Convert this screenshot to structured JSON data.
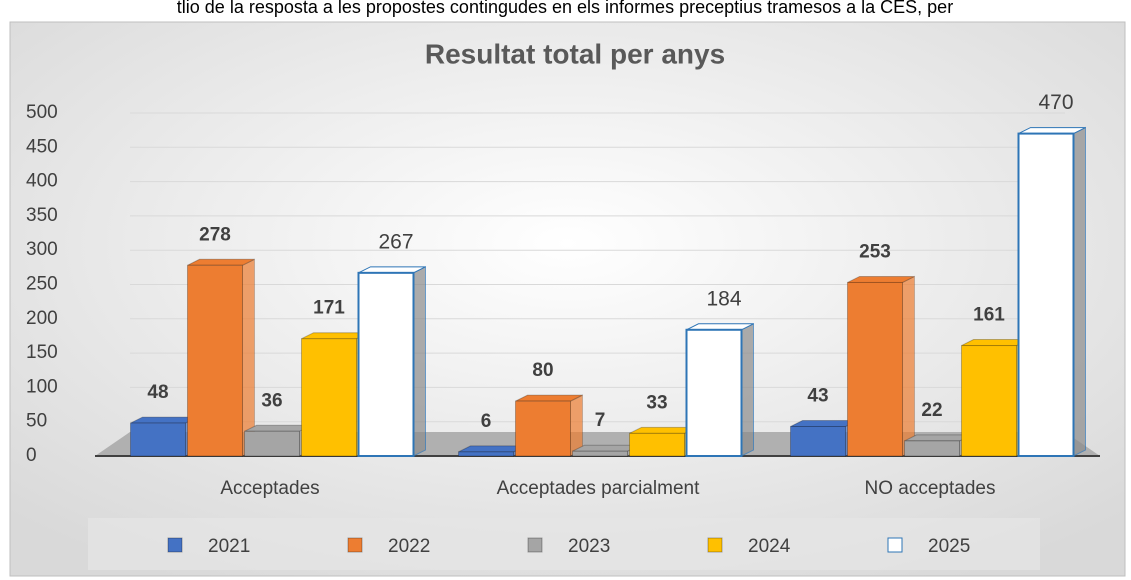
{
  "caption": "tlio de la resposta a les propostes contingudes en els informes preceptius tramesos a la CES, per",
  "chart_data": {
    "type": "bar",
    "title": "Resultat total per anys",
    "categories": [
      "Acceptades",
      "Acceptades parcialment",
      "NO acceptades"
    ],
    "series": [
      {
        "name": "2021",
        "color": "#4472c4",
        "values": [
          48,
          6,
          43
        ]
      },
      {
        "name": "2022",
        "color": "#ed7d31",
        "values": [
          278,
          80,
          253
        ]
      },
      {
        "name": "2023",
        "color": "#a5a5a5",
        "values": [
          36,
          7,
          22
        ]
      },
      {
        "name": "2024",
        "color": "#ffc000",
        "values": [
          171,
          33,
          161
        ]
      },
      {
        "name": "2025",
        "color": "#ffffff",
        "values": [
          267,
          184,
          470
        ]
      }
    ],
    "ylim": [
      0,
      500
    ],
    "yticks": [
      0,
      50,
      100,
      150,
      200,
      250,
      300,
      350,
      400,
      450,
      500
    ],
    "grid": true,
    "legend": "bottom"
  }
}
